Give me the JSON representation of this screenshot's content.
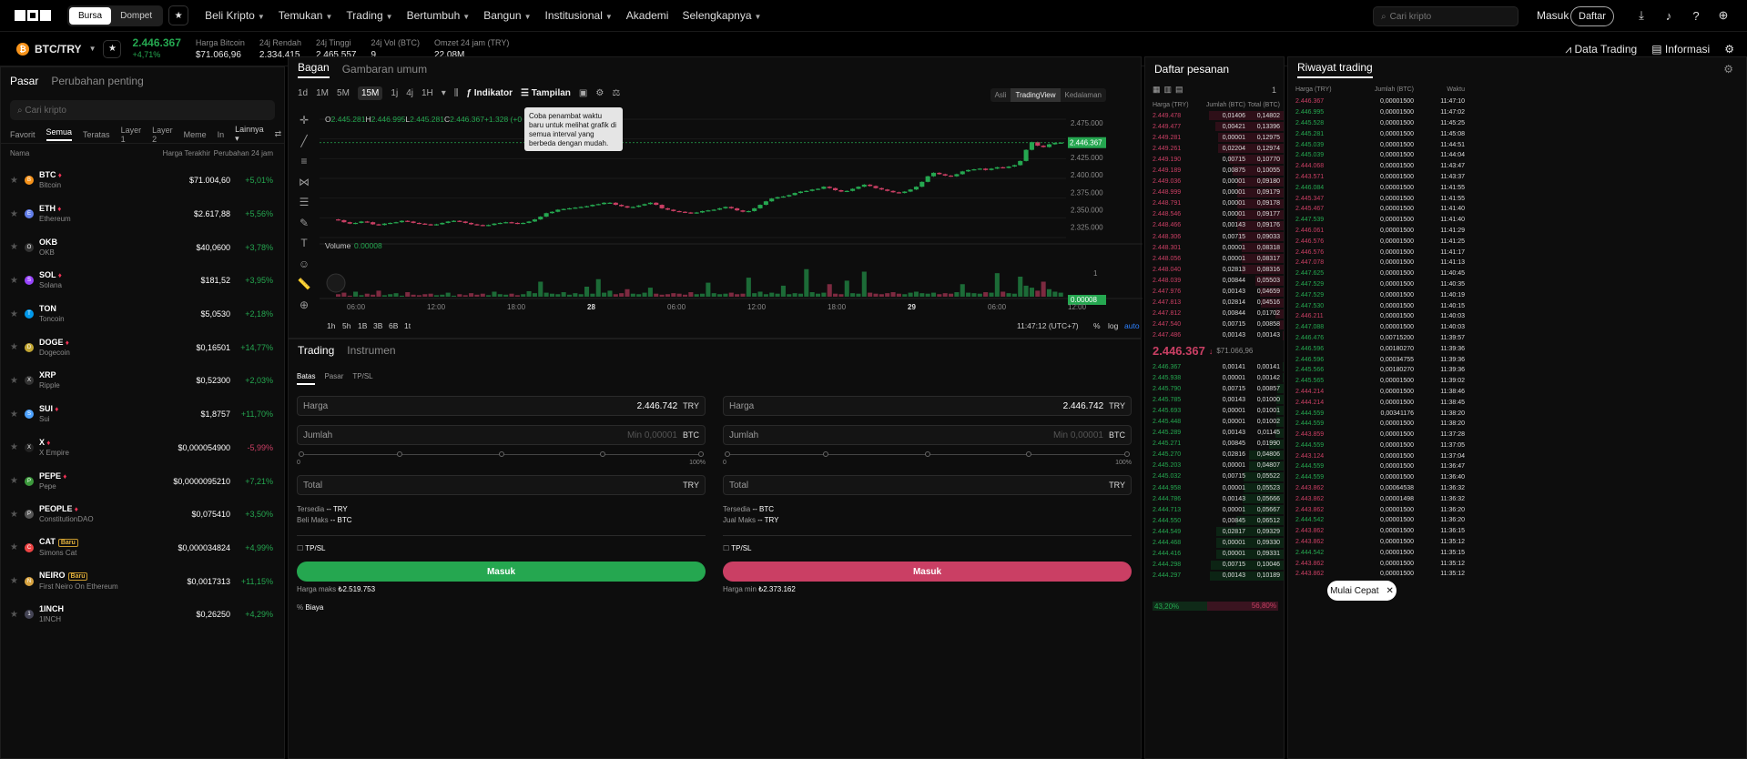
{
  "nav": {
    "exchange": "Bursa",
    "wallet": "Dompet",
    "items": [
      "Beli Kripto",
      "Temukan",
      "Trading",
      "Bertumbuh",
      "Bangun",
      "Institusional",
      "Akademi",
      "Selengkapnya"
    ],
    "search_placeholder": "Cari kripto",
    "login": "Masuk",
    "signup": "Daftar"
  },
  "ticker": {
    "pair": "BTC/TRY",
    "price": "2.446.367",
    "change": "+4,71%",
    "stats": [
      {
        "label": "Harga Bitcoin",
        "value": "$71.066,96"
      },
      {
        "label": "24j Rendah",
        "value": "2.334.415"
      },
      {
        "label": "24j Tinggi",
        "value": "2.465.557"
      },
      {
        "label": "24j Vol (BTC)",
        "value": "9"
      },
      {
        "label": "Omzet 24 jam (TRY)",
        "value": "22,08M"
      }
    ],
    "data_trading": "Data Trading",
    "info": "Informasi"
  },
  "market": {
    "tab_market": "Pasar",
    "tab_changes": "Perubahan penting",
    "search_placeholder": "Cari kripto",
    "cats": [
      "Favorit",
      "Semua",
      "Teratas",
      "Layer 1",
      "Layer 2",
      "Meme",
      "In"
    ],
    "more": "Lainnya",
    "col_name": "Nama",
    "col_price": "Harga Terakhir",
    "col_change": "Perubahan 24 jam",
    "rows": [
      {
        "sym": "BTC",
        "name": "Bitcoin",
        "price": "$71.004,60",
        "chg": "+5,01%",
        "up": true,
        "hot": true,
        "color": "#f7931a"
      },
      {
        "sym": "ETH",
        "name": "Ethereum",
        "price": "$2.617,88",
        "chg": "+5,56%",
        "up": true,
        "hot": true,
        "color": "#627eea"
      },
      {
        "sym": "OKB",
        "name": "OKB",
        "price": "$40,0600",
        "chg": "+3,78%",
        "up": true,
        "hot": false,
        "color": "#333"
      },
      {
        "sym": "SOL",
        "name": "Solana",
        "price": "$181,52",
        "chg": "+3,95%",
        "up": true,
        "hot": true,
        "color": "#9945ff"
      },
      {
        "sym": "TON",
        "name": "Toncoin",
        "price": "$5,0530",
        "chg": "+2,18%",
        "up": true,
        "hot": false,
        "color": "#0098ea"
      },
      {
        "sym": "DOGE",
        "name": "Dogecoin",
        "price": "$0,16501",
        "chg": "+14,77%",
        "up": true,
        "hot": true,
        "color": "#c2a633"
      },
      {
        "sym": "XRP",
        "name": "Ripple",
        "price": "$0,52300",
        "chg": "+2,03%",
        "up": true,
        "hot": false,
        "color": "#333"
      },
      {
        "sym": "SUI",
        "name": "Sui",
        "price": "$1,8757",
        "chg": "+11,70%",
        "up": true,
        "hot": true,
        "color": "#4da2ff"
      },
      {
        "sym": "X",
        "name": "X Empire",
        "price": "$0,000054900",
        "chg": "-5,99%",
        "up": false,
        "hot": true,
        "color": "#222"
      },
      {
        "sym": "PEPE",
        "name": "Pepe",
        "price": "$0,0000095210",
        "chg": "+7,21%",
        "up": true,
        "hot": true,
        "color": "#3c9a3c"
      },
      {
        "sym": "PEOPLE",
        "name": "ConstitutionDAO",
        "price": "$0,075410",
        "chg": "+3,50%",
        "up": true,
        "hot": true,
        "color": "#555"
      },
      {
        "sym": "CAT",
        "name": "Simons Cat",
        "price": "$0,000034824",
        "chg": "+4,99%",
        "up": true,
        "hot": false,
        "badge": "Baru",
        "color": "#e44"
      },
      {
        "sym": "NEIRO",
        "name": "First Neiro On Ethereum",
        "price": "$0,0017313",
        "chg": "+11,15%",
        "up": true,
        "hot": false,
        "badge": "Baru",
        "color": "#d9a441"
      },
      {
        "sym": "1INCH",
        "name": "1INCH",
        "price": "$0,26250",
        "chg": "+4,29%",
        "up": true,
        "hot": false,
        "color": "#445"
      }
    ]
  },
  "chart": {
    "tab_chart": "Bagan",
    "tab_overview": "Gambaran umum",
    "intervals": [
      "1d",
      "1M",
      "5M",
      "15M",
      "1j",
      "4j",
      "1H"
    ],
    "active_interval": "15M",
    "indicator": "Indikator",
    "display": "Tampilan",
    "views": [
      "Asli",
      "TradingView",
      "Kedalaman"
    ],
    "active_view": "TradingView",
    "ohlc": {
      "o": "2.445.281",
      "h": "2.446.995",
      "l": "2.445.281",
      "c": "2.446.367",
      "chg": "+1.328 (+0"
    },
    "volume_label": "Volume",
    "volume_value": "0.00008",
    "price_ticks": [
      "2.475.000",
      "2.450.000",
      "2.425.000",
      "2.400.000",
      "2.375.000",
      "2.350.000",
      "2.325.000"
    ],
    "last_price": "2.446.367",
    "vol_ticks": [
      "1"
    ],
    "vol_last": "0.00008",
    "time_ticks": [
      "06:00",
      "12:00",
      "18:00",
      "28",
      "06:00",
      "12:00",
      "18:00",
      "29",
      "06:00",
      "12:00"
    ],
    "ranges": [
      "1h",
      "5h",
      "1B",
      "3B",
      "6B",
      "1t"
    ],
    "clock": "11:47:12 (UTC+7)",
    "pct": "%",
    "log": "log",
    "auto": "auto",
    "tooltip": "Coba penambat waktu baru untuk melihat grafik di semua interval yang berbeda dengan mudah."
  },
  "chart_data": {
    "type": "candlestick",
    "x_ticks": [
      "06:00",
      "12:00",
      "18:00",
      "28",
      "06:00",
      "12:00",
      "18:00",
      "29",
      "06:00",
      "12:00"
    ],
    "ylim": [
      2310000,
      2480000
    ],
    "close": [
      2335000,
      2332000,
      2330000,
      2331000,
      2333000,
      2332000,
      2329000,
      2328000,
      2330000,
      2331000,
      2332000,
      2334000,
      2333000,
      2331000,
      2330000,
      2329000,
      2328000,
      2329000,
      2331000,
      2333000,
      2334000,
      2333000,
      2331000,
      2329000,
      2328000,
      2327000,
      2328000,
      2330000,
      2331000,
      2332000,
      2331000,
      2330000,
      2331000,
      2333000,
      2336000,
      2340000,
      2345000,
      2347000,
      2350000,
      2351000,
      2352000,
      2353000,
      2354000,
      2355000,
      2357000,
      2358000,
      2360000,
      2360000,
      2357000,
      2355000,
      2353000,
      2354000,
      2356000,
      2358000,
      2360000,
      2357000,
      2352000,
      2350000,
      2348000,
      2347000,
      2346000,
      2345000,
      2346000,
      2348000,
      2349000,
      2350000,
      2352000,
      2354000,
      2352000,
      2349000,
      2347000,
      2348000,
      2352000,
      2357000,
      2362000,
      2366000,
      2368000,
      2369000,
      2371000,
      2374000,
      2376000,
      2377000,
      2379000,
      2380000,
      2383000,
      2381000,
      2378000,
      2376000,
      2377000,
      2380000,
      2383000,
      2386000,
      2384000,
      2381000,
      2379000,
      2377000,
      2375000,
      2374000,
      2376000,
      2379000,
      2383000,
      2390000,
      2398000,
      2403000,
      2401000,
      2399000,
      2398000,
      2401000,
      2405000,
      2407000,
      2408000,
      2409000,
      2407000,
      2409000,
      2411000,
      2410000,
      2412000,
      2414000,
      2420000,
      2436000,
      2447000,
      2442000,
      2440000,
      2444000,
      2446000,
      2446367
    ],
    "volume": [
      0.05,
      0.08,
      0.02,
      0.1,
      0.03,
      0.06,
      0.04,
      0.12,
      0.03,
      0.05,
      0.07,
      0.02,
      0.09,
      0.04,
      0.03,
      0.05,
      0.06,
      0.03,
      0.04,
      0.08,
      0.02,
      0.05,
      0.03,
      0.07,
      0.04,
      0.06,
      0.03,
      0.1,
      0.05,
      0.04,
      0.06,
      0.03,
      0.05,
      0.11,
      0.07,
      0.3,
      0.08,
      0.06,
      0.05,
      0.09,
      0.04,
      0.07,
      0.05,
      0.2,
      0.06,
      0.35,
      0.08,
      0.12,
      0.05,
      0.07,
      0.15,
      0.06,
      0.05,
      0.08,
      0.18,
      0.06,
      0.04,
      0.05,
      0.07,
      0.06,
      0.04,
      0.09,
      0.05,
      0.06,
      0.28,
      0.07,
      0.05,
      0.06,
      0.08,
      0.05,
      0.06,
      0.38,
      0.07,
      0.1,
      0.05,
      0.08,
      0.06,
      0.22,
      0.05,
      0.07,
      0.06,
      0.55,
      0.09,
      0.06,
      0.08,
      0.25,
      0.06,
      0.05,
      0.32,
      0.07,
      0.06,
      0.5,
      0.08,
      0.06,
      0.05,
      0.07,
      0.09,
      0.06,
      0.05,
      0.08,
      0.1,
      0.07,
      0.06,
      0.08,
      0.05,
      0.07,
      0.06,
      0.09,
      0.25,
      0.08,
      0.07,
      0.06,
      0.09,
      0.08,
      0.47,
      0.1,
      0.07,
      0.06,
      0.4,
      0.22,
      0.18,
      0.12,
      0.3,
      0.15,
      0.1,
      0.08
    ]
  },
  "trade": {
    "tab_trading": "Trading",
    "tab_instr": "Instrumen",
    "types": [
      "Batas",
      "Pasar",
      "TP/SL"
    ],
    "price_label": "Harga",
    "price_val": "2.446.742",
    "unit_try": "TRY",
    "amount_label": "Jumlah",
    "amount_ph": "Min 0,00001",
    "unit_btc": "BTC",
    "total_label": "Total",
    "slider_min": "0",
    "slider_max": "100%",
    "avail": "Tersedia",
    "dash": "--",
    "max_buy": "Beli Maks",
    "max_sell": "Jual Maks",
    "tpsl": "TP/SL",
    "buy_btn": "Masuk",
    "sell_btn": "Masuk",
    "max_price_label": "Harga maks",
    "max_price": "₺2.519.753",
    "min_price_label": "Harga min",
    "min_price": "₺2.373.162",
    "fee": "Biaya"
  },
  "orderbook": {
    "title": "Daftar pesanan",
    "depth": "1",
    "h_price": "Harga (TRY)",
    "h_qty": "Jumlah (BTC)",
    "h_total": "Total (BTC)",
    "asks": [
      [
        "2.449.478",
        "0,01406",
        "0,14802"
      ],
      [
        "2.449.477",
        "0,00421",
        "0,13396"
      ],
      [
        "2.449.281",
        "0,00001",
        "0,12975"
      ],
      [
        "2.449.261",
        "0,02204",
        "0,12974"
      ],
      [
        "2.449.190",
        "0,00715",
        "0,10770"
      ],
      [
        "2.449.189",
        "0,00875",
        "0,10055"
      ],
      [
        "2.449.036",
        "0,00001",
        "0,09180"
      ],
      [
        "2.448.999",
        "0,00001",
        "0,09179"
      ],
      [
        "2.448.791",
        "0,00001",
        "0,09178"
      ],
      [
        "2.448.546",
        "0,00001",
        "0,09177"
      ],
      [
        "2.448.466",
        "0,00143",
        "0,09176"
      ],
      [
        "2.448.306",
        "0,00715",
        "0,09033"
      ],
      [
        "2.448.301",
        "0,00001",
        "0,08318"
      ],
      [
        "2.448.056",
        "0,00001",
        "0,08317"
      ],
      [
        "2.448.040",
        "0,02813",
        "0,08316"
      ],
      [
        "2.448.039",
        "0,00844",
        "0,05503"
      ],
      [
        "2.447.976",
        "0,00143",
        "0,04659"
      ],
      [
        "2.447.813",
        "0,02814",
        "0,04516"
      ],
      [
        "2.447.812",
        "0,00844",
        "0,01702"
      ],
      [
        "2.447.540",
        "0,00715",
        "0,00858"
      ],
      [
        "2.447.486",
        "0,00143",
        "0,00143"
      ]
    ],
    "mid_price": "2.446.367",
    "mid_usd": "$71.066,96",
    "bids": [
      [
        "2.446.367",
        "0,00141",
        "0,00141"
      ],
      [
        "2.445.938",
        "0,00001",
        "0,00142"
      ],
      [
        "2.445.790",
        "0,00715",
        "0,00857"
      ],
      [
        "2.445.785",
        "0,00143",
        "0,01000"
      ],
      [
        "2.445.693",
        "0,00001",
        "0,01001"
      ],
      [
        "2.445.448",
        "0,00001",
        "0,01002"
      ],
      [
        "2.445.289",
        "0,00143",
        "0,01145"
      ],
      [
        "2.445.271",
        "0,00845",
        "0,01990"
      ],
      [
        "2.445.270",
        "0,02816",
        "0,04806"
      ],
      [
        "2.445.203",
        "0,00001",
        "0,04807"
      ],
      [
        "2.445.032",
        "0,00715",
        "0,05522"
      ],
      [
        "2.444.958",
        "0,00001",
        "0,05523"
      ],
      [
        "2.444.786",
        "0,00143",
        "0,05666"
      ],
      [
        "2.444.713",
        "0,00001",
        "0,05667"
      ],
      [
        "2.444.550",
        "0,00845",
        "0,06512"
      ],
      [
        "2.444.549",
        "0,02817",
        "0,09329"
      ],
      [
        "2.444.468",
        "0,00001",
        "0,09330"
      ],
      [
        "2.444.416",
        "0,00001",
        "0,09331"
      ],
      [
        "2.444.298",
        "0,00715",
        "0,10046"
      ],
      [
        "2.444.297",
        "0,00143",
        "0,10189"
      ]
    ],
    "buy_pct": "43,20%",
    "sell_pct": "56,80%"
  },
  "trades": {
    "title": "Riwayat trading",
    "h_price": "Harga (TRY)",
    "h_qty": "Jumlah (BTC)",
    "h_time": "Waktu",
    "rows": [
      [
        "2.446.367",
        "0,00001500",
        "11:47:10",
        false
      ],
      [
        "2.446.995",
        "0,00001500",
        "11:47:02",
        true
      ],
      [
        "2.445.528",
        "0,00001500",
        "11:45:25",
        true
      ],
      [
        "2.445.281",
        "0,00001500",
        "11:45:08",
        true
      ],
      [
        "2.445.039",
        "0,00001500",
        "11:44:51",
        true
      ],
      [
        "2.445.039",
        "0,00001500",
        "11:44:04",
        true
      ],
      [
        "2.444.068",
        "0,00001500",
        "11:43:47",
        false
      ],
      [
        "2.443.571",
        "0,00001500",
        "11:43:37",
        false
      ],
      [
        "2.446.084",
        "0,00001500",
        "11:41:55",
        true
      ],
      [
        "2.445.347",
        "0,00001500",
        "11:41:55",
        false
      ],
      [
        "2.445.467",
        "0,00001500",
        "11:41:40",
        false
      ],
      [
        "2.447.539",
        "0,00001500",
        "11:41:40",
        true
      ],
      [
        "2.446.061",
        "0,00001500",
        "11:41:29",
        false
      ],
      [
        "2.446.576",
        "0,00001500",
        "11:41:25",
        false
      ],
      [
        "2.446.576",
        "0,00001500",
        "11:41:17",
        false
      ],
      [
        "2.447.078",
        "0,00001500",
        "11:41:13",
        false
      ],
      [
        "2.447.625",
        "0,00001500",
        "11:40:45",
        true
      ],
      [
        "2.447.529",
        "0,00001500",
        "11:40:35",
        true
      ],
      [
        "2.447.529",
        "0,00001500",
        "11:40:19",
        true
      ],
      [
        "2.447.530",
        "0,00001500",
        "11:40:15",
        true
      ],
      [
        "2.446.211",
        "0,00001500",
        "11:40:03",
        false
      ],
      [
        "2.447.088",
        "0,00001500",
        "11:40:03",
        true
      ],
      [
        "2.446.476",
        "0,00715200",
        "11:39:57",
        true
      ],
      [
        "2.446.596",
        "0,00180270",
        "11:39:36",
        true
      ],
      [
        "2.446.596",
        "0,00034755",
        "11:39:36",
        true
      ],
      [
        "2.445.566",
        "0,00180270",
        "11:39:36",
        true
      ],
      [
        "2.445.565",
        "0,00001500",
        "11:39:02",
        true
      ],
      [
        "2.444.214",
        "0,00001500",
        "11:38:46",
        false
      ],
      [
        "2.444.214",
        "0,00001500",
        "11:38:45",
        false
      ],
      [
        "2.444.559",
        "0,00341176",
        "11:38:20",
        true
      ],
      [
        "2.444.559",
        "0,00001500",
        "11:38:20",
        true
      ],
      [
        "2.443.859",
        "0,00001500",
        "11:37:28",
        false
      ],
      [
        "2.444.559",
        "0,00001500",
        "11:37:05",
        true
      ],
      [
        "2.443.124",
        "0,00001500",
        "11:37:04",
        false
      ],
      [
        "2.444.559",
        "0,00001500",
        "11:36:47",
        true
      ],
      [
        "2.444.559",
        "0,00001500",
        "11:36:40",
        true
      ],
      [
        "2.443.862",
        "0,00064538",
        "11:36:32",
        false
      ],
      [
        "2.443.862",
        "0,00001498",
        "11:36:32",
        false
      ],
      [
        "2.443.862",
        "0,00001500",
        "11:36:20",
        false
      ],
      [
        "2.444.542",
        "0,00001500",
        "11:36:20",
        true
      ],
      [
        "2.443.862",
        "0,00001500",
        "11:36:15",
        false
      ],
      [
        "2.443.862",
        "0,00001500",
        "11:35:12",
        false
      ],
      [
        "2.444.542",
        "0,00001500",
        "11:35:15",
        true
      ],
      [
        "2.443.862",
        "0,00001500",
        "11:35:12",
        false
      ],
      [
        "2.443.862",
        "0,00001500",
        "11:35:12",
        false
      ]
    ]
  },
  "quick": "Mulai Cepat"
}
